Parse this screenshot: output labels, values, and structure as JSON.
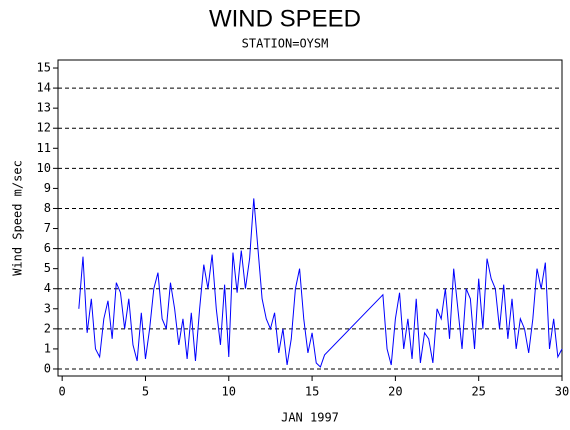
{
  "chart_data": {
    "type": "line",
    "title": "WIND SPEED",
    "subtitle": "STATION=OYSM",
    "x_label": "JAN 1997",
    "y_label": "Wind Speed m/sec",
    "xlim": [
      -0.25,
      30
    ],
    "xticks": [
      0,
      5,
      10,
      15,
      20,
      25,
      30
    ],
    "ylim": [
      -0.35,
      15.4
    ],
    "yticks": [
      0,
      1,
      2,
      3,
      4,
      5,
      6,
      7,
      8,
      9,
      10,
      11,
      12,
      13,
      14,
      15
    ],
    "grid": true,
    "series": [
      {
        "name": "Wind Speed",
        "color": "#0000ff",
        "x": [
          1,
          1.25,
          1.5,
          1.75,
          2,
          2.25,
          2.5,
          2.75,
          3,
          3.25,
          3.5,
          3.75,
          4,
          4.25,
          4.5,
          4.75,
          5,
          5.25,
          5.5,
          5.75,
          6,
          6.25,
          6.5,
          6.75,
          7,
          7.25,
          7.5,
          7.75,
          8,
          8.25,
          8.5,
          8.75,
          9,
          9.25,
          9.5,
          9.75,
          10,
          10.25,
          10.5,
          10.75,
          11,
          11.25,
          11.5,
          11.75,
          12,
          12.25,
          12.5,
          12.75,
          13,
          13.25,
          13.5,
          13.75,
          14,
          14.25,
          14.5,
          14.75,
          15,
          15.25,
          15.5,
          15.75,
          19.25,
          19.5,
          19.75,
          20,
          20.25,
          20.5,
          20.75,
          21,
          21.25,
          21.5,
          21.75,
          22,
          22.25,
          22.5,
          22.75,
          23,
          23.25,
          23.5,
          23.75,
          24,
          24.25,
          24.5,
          24.75,
          25,
          25.25,
          25.5,
          25.75,
          26,
          26.25,
          26.5,
          26.75,
          27,
          27.25,
          27.5,
          27.75,
          28,
          28.25,
          28.5,
          28.75,
          29,
          29.25,
          29.5,
          29.75,
          30
        ],
        "values": [
          3.0,
          5.6,
          1.8,
          3.5,
          1.0,
          0.6,
          2.5,
          3.4,
          1.5,
          4.3,
          3.8,
          2.0,
          3.5,
          1.2,
          0.4,
          2.8,
          0.5,
          2.0,
          4.0,
          4.8,
          2.5,
          2.0,
          4.3,
          3.0,
          1.2,
          2.5,
          0.5,
          2.8,
          0.4,
          3.0,
          5.2,
          4.0,
          5.7,
          3.0,
          1.2,
          4.2,
          0.6,
          5.8,
          3.8,
          5.9,
          4.0,
          5.5,
          8.5,
          6.0,
          3.5,
          2.5,
          2.0,
          2.8,
          0.8,
          2.0,
          0.2,
          1.5,
          4.0,
          5.0,
          2.5,
          0.8,
          1.8,
          0.3,
          0.1,
          0.7,
          3.7,
          1.0,
          0.2,
          2.5,
          3.8,
          1.0,
          2.5,
          0.5,
          3.5,
          0.3,
          1.8,
          1.5,
          0.3,
          3.0,
          2.5,
          4.0,
          1.5,
          5.0,
          3.0,
          1.0,
          4.0,
          3.5,
          1.0,
          4.5,
          2.0,
          5.5,
          4.5,
          4.0,
          2.0,
          4.2,
          1.5,
          3.5,
          1.0,
          2.5,
          2.0,
          0.8,
          2.5,
          5.0,
          4.0,
          5.3,
          1.0,
          2.5,
          0.6,
          1.0
        ]
      }
    ]
  }
}
